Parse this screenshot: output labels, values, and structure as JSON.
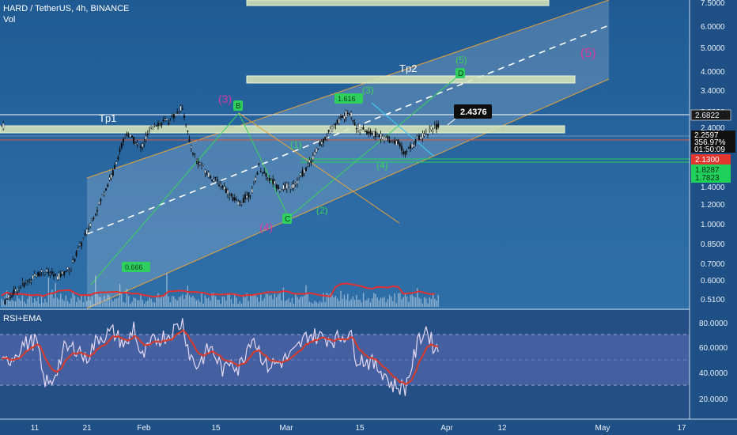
{
  "header": {
    "title": "HARD / TetherUS, 4h, BINANCE",
    "vol_label": "Vol"
  },
  "rsi_panel": {
    "label": "RSI+EMA",
    "ticks": [
      "80.0000",
      "60.0000",
      "40.0000",
      "20.0000"
    ]
  },
  "chart_data": {
    "type": "candlestick",
    "price_axis": {
      "scale": "log",
      "ticks": [
        "7.5000",
        "6.0000",
        "5.0000",
        "4.0000",
        "3.4000",
        "2.8000",
        "2.4000",
        "2.0000",
        "1.6000",
        "1.4000",
        "1.2000",
        "1.0000",
        "0.8500",
        "0.7000",
        "0.6000",
        "0.5100"
      ]
    },
    "time_axis": {
      "ticks": [
        "11",
        "21",
        "Feb",
        "15",
        "Mar",
        "15",
        "Apr",
        "12",
        "May",
        "17"
      ]
    },
    "price_path": [
      [
        0.5,
        0.5
      ],
      [
        3,
        0.58
      ],
      [
        6,
        0.66
      ],
      [
        8,
        0.62
      ],
      [
        10,
        0.68
      ],
      [
        12,
        0.9
      ],
      [
        14,
        1.2
      ],
      [
        16,
        1.6
      ],
      [
        18,
        2.3
      ],
      [
        20,
        2.0
      ],
      [
        22,
        2.5
      ],
      [
        24,
        2.55
      ],
      [
        26,
        2.9
      ],
      [
        27,
        2.1
      ],
      [
        28,
        1.8
      ],
      [
        30,
        1.55
      ],
      [
        32,
        1.4
      ],
      [
        34,
        1.2
      ],
      [
        36,
        1.35
      ],
      [
        37,
        1.7
      ],
      [
        38,
        1.55
      ],
      [
        40,
        1.4
      ],
      [
        42,
        1.42
      ],
      [
        44,
        1.7
      ],
      [
        46,
        2.1
      ],
      [
        48,
        2.5
      ],
      [
        50,
        2.8
      ],
      [
        51,
        2.4
      ],
      [
        53,
        2.3
      ],
      [
        55,
        2.2
      ],
      [
        57,
        2.1
      ],
      [
        58,
        1.9
      ],
      [
        60,
        2.2
      ],
      [
        62,
        2.4
      ],
      [
        63,
        2.45
      ]
    ],
    "rsi_path": [
      [
        0,
        45
      ],
      [
        2,
        55
      ],
      [
        3,
        62
      ],
      [
        5,
        65
      ],
      [
        6,
        35
      ],
      [
        7,
        30
      ],
      [
        9,
        58
      ],
      [
        11,
        60
      ],
      [
        12,
        50
      ],
      [
        14,
        68
      ],
      [
        16,
        72
      ],
      [
        18,
        60
      ],
      [
        19,
        78
      ],
      [
        20,
        50
      ],
      [
        22,
        66
      ],
      [
        24,
        70
      ],
      [
        26,
        80
      ],
      [
        27,
        55
      ],
      [
        28,
        45
      ],
      [
        30,
        60
      ],
      [
        32,
        40
      ],
      [
        33,
        52
      ],
      [
        34,
        42
      ],
      [
        36,
        70
      ],
      [
        37,
        58
      ],
      [
        38,
        45
      ],
      [
        40,
        48
      ],
      [
        42,
        55
      ],
      [
        44,
        70
      ],
      [
        46,
        68
      ],
      [
        48,
        66
      ],
      [
        50,
        72
      ],
      [
        51,
        52
      ],
      [
        53,
        48
      ],
      [
        55,
        40
      ],
      [
        56,
        30
      ],
      [
        58,
        28
      ],
      [
        60,
        66
      ],
      [
        61,
        75
      ],
      [
        62,
        62
      ],
      [
        63,
        56
      ]
    ],
    "price_labels": {
      "last": "2.2597",
      "change": "356.97%",
      "countdown": "01:50:09",
      "level_2682": "2.6822",
      "level_2130": "2.1300",
      "level_1828": "1.8287",
      "level_1782": "1.7823",
      "marker": "2.4376"
    },
    "targets": [
      {
        "label": "Tp1",
        "price": 2.4
      },
      {
        "label": "Tp2",
        "price": 3.7
      }
    ],
    "wave_labels": {
      "pink": [
        "(3)",
        "(4)",
        "(5)"
      ],
      "green": [
        "(1)",
        "(2)",
        "(3)",
        "(4)",
        "(5)"
      ],
      "points": [
        "B",
        "C",
        "D"
      ],
      "fibs": [
        "1.616",
        "0.666"
      ]
    }
  }
}
